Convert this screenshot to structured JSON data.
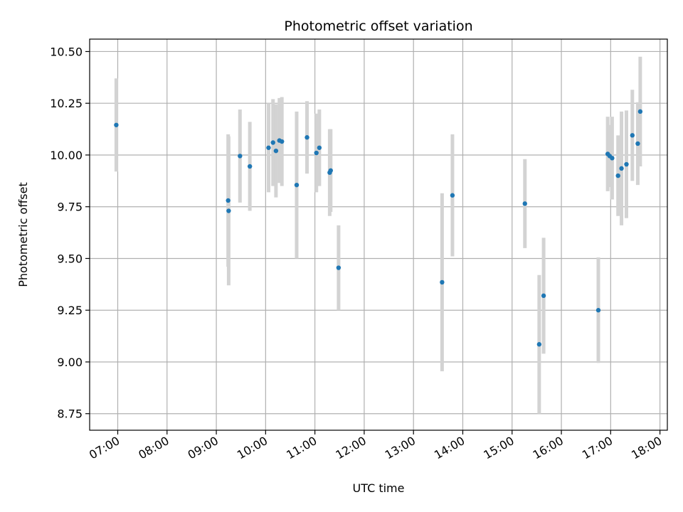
{
  "chart_data": {
    "type": "scatter",
    "title": "Photometric offset variation",
    "xlabel": "UTC time",
    "ylabel": "Photometric offset",
    "x_tick_labels": [
      "07:00",
      "08:00",
      "09:00",
      "10:00",
      "11:00",
      "12:00",
      "13:00",
      "14:00",
      "15:00",
      "16:00",
      "17:00",
      "18:00"
    ],
    "y_tick_labels": [
      "8.75",
      "9.00",
      "9.25",
      "9.50",
      "9.75",
      "10.00",
      "10.25",
      "10.50"
    ],
    "x_ticks_hours": [
      7,
      8,
      9,
      10,
      11,
      12,
      13,
      14,
      15,
      16,
      17,
      18
    ],
    "y_ticks": [
      8.75,
      9.0,
      9.25,
      9.5,
      9.75,
      10.0,
      10.25,
      10.5
    ],
    "xlim_hours": [
      6.43,
      18.15
    ],
    "ylim": [
      8.67,
      10.56
    ],
    "grid": true,
    "colors": {
      "point": "#1f77b4",
      "errorbar": "#d3d3d3",
      "grid": "#b0b0b0"
    },
    "points": [
      {
        "t": 6.97,
        "y": 10.145,
        "err": 0.225
      },
      {
        "t": 9.24,
        "y": 9.78,
        "err": 0.32
      },
      {
        "t": 9.25,
        "y": 9.73,
        "err": 0.36
      },
      {
        "t": 9.48,
        "y": 9.995,
        "err": 0.225
      },
      {
        "t": 9.68,
        "y": 9.945,
        "err": 0.215
      },
      {
        "t": 10.06,
        "y": 10.035,
        "err": 0.215
      },
      {
        "t": 10.15,
        "y": 10.06,
        "err": 0.21
      },
      {
        "t": 10.21,
        "y": 10.02,
        "err": 0.225
      },
      {
        "t": 10.28,
        "y": 10.07,
        "err": 0.205
      },
      {
        "t": 10.33,
        "y": 10.065,
        "err": 0.215
      },
      {
        "t": 10.63,
        "y": 9.855,
        "err": 0.355
      },
      {
        "t": 10.84,
        "y": 10.085,
        "err": 0.175
      },
      {
        "t": 11.03,
        "y": 10.01,
        "err": 0.19
      },
      {
        "t": 11.09,
        "y": 10.035,
        "err": 0.185
      },
      {
        "t": 11.3,
        "y": 9.915,
        "err": 0.21
      },
      {
        "t": 11.32,
        "y": 9.925,
        "err": 0.2
      },
      {
        "t": 11.48,
        "y": 9.455,
        "err": 0.205
      },
      {
        "t": 13.58,
        "y": 9.385,
        "err": 0.43
      },
      {
        "t": 13.79,
        "y": 9.805,
        "err": 0.295
      },
      {
        "t": 15.26,
        "y": 9.765,
        "err": 0.215
      },
      {
        "t": 15.55,
        "y": 9.085,
        "err": 0.335
      },
      {
        "t": 15.64,
        "y": 9.32,
        "err": 0.28
      },
      {
        "t": 16.75,
        "y": 9.25,
        "err": 0.255
      },
      {
        "t": 16.94,
        "y": 10.005,
        "err": 0.18
      },
      {
        "t": 16.98,
        "y": 9.995,
        "err": 0.15
      },
      {
        "t": 17.03,
        "y": 9.985,
        "err": 0.2
      },
      {
        "t": 17.15,
        "y": 9.9,
        "err": 0.195
      },
      {
        "t": 17.22,
        "y": 9.935,
        "err": 0.275
      },
      {
        "t": 17.32,
        "y": 9.955,
        "err": 0.26
      },
      {
        "t": 17.44,
        "y": 10.095,
        "err": 0.22
      },
      {
        "t": 17.55,
        "y": 10.055,
        "err": 0.2
      },
      {
        "t": 17.6,
        "y": 10.21,
        "err": 0.265
      }
    ]
  }
}
